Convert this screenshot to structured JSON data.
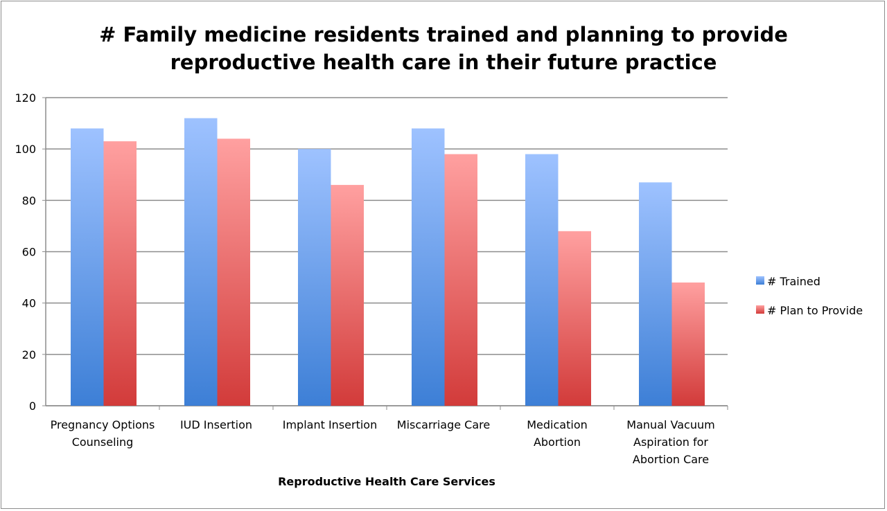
{
  "chart_data": {
    "type": "bar",
    "title": "# Family medicine residents trained and planning to provide reproductive health care in their future practice",
    "title_lines": [
      "# Family medicine residents trained and planning to provide",
      "reproductive health care in their future practice"
    ],
    "xlabel": "Reproductive Health Care Services",
    "ylabel": "",
    "ylim": [
      0,
      120
    ],
    "yticks": [
      0,
      20,
      40,
      60,
      80,
      100,
      120
    ],
    "grid": true,
    "legend_position": "right",
    "categories": [
      [
        "Pregnancy Options",
        "Counseling"
      ],
      [
        "IUD Insertion"
      ],
      [
        "Implant Insertion"
      ],
      [
        "Miscarriage Care"
      ],
      [
        "Medication",
        "Abortion"
      ],
      [
        "Manual Vacuum",
        "Aspiration for",
        "Abortion Care"
      ]
    ],
    "series": [
      {
        "name": "# Trained",
        "color": "#6f9fe8",
        "values": [
          108,
          112,
          100,
          108,
          98,
          87
        ]
      },
      {
        "name": "# Plan to Provide",
        "color": "#e8706f",
        "values": [
          103,
          104,
          86,
          98,
          68,
          48
        ]
      }
    ]
  }
}
